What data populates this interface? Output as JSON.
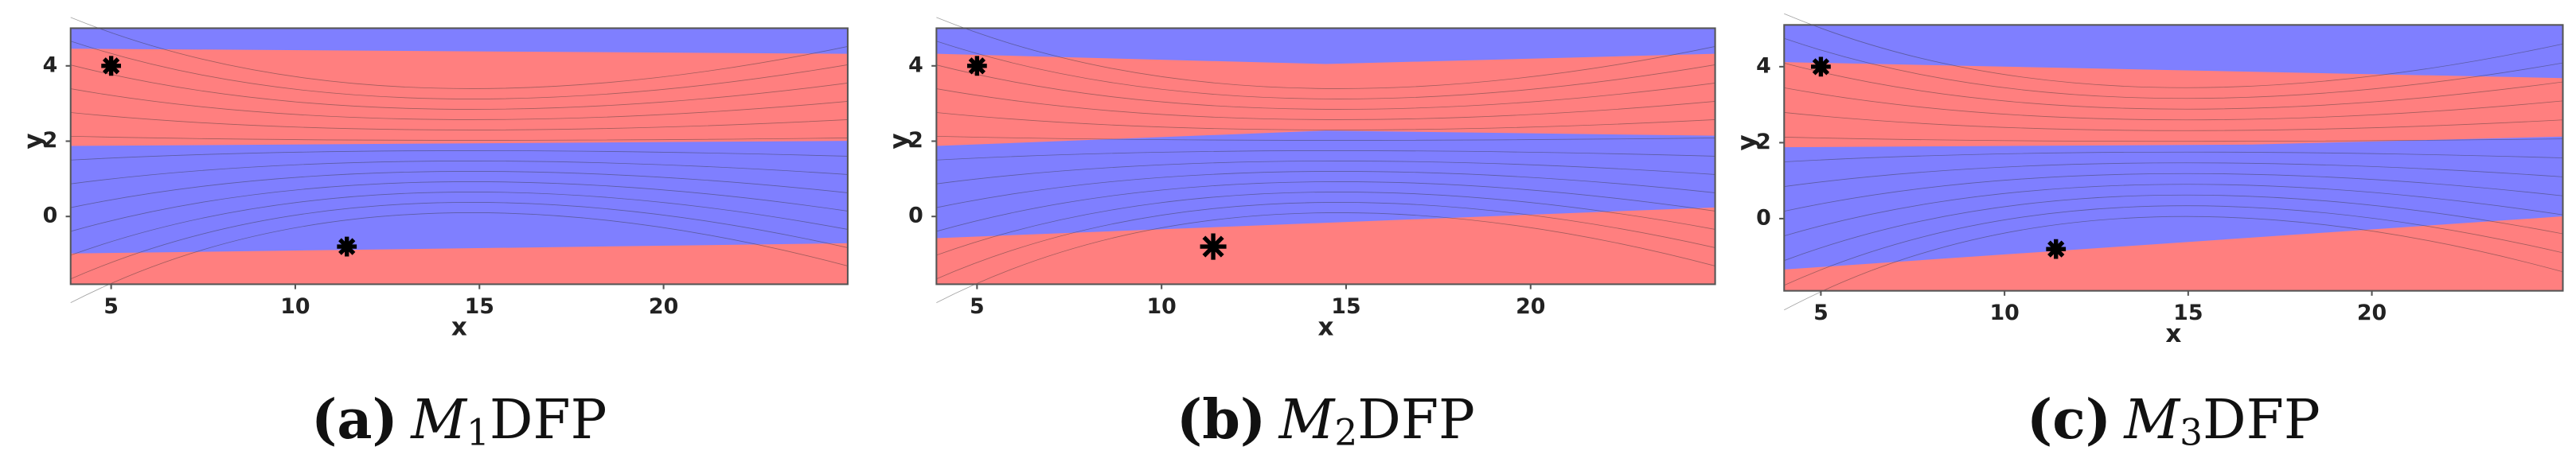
{
  "chart_data": [
    {
      "type": "basin",
      "caption_label": "(a)",
      "caption_symbol": "M",
      "caption_subscript": "1",
      "caption_suffix": "DFP",
      "xlabel": "x",
      "ylabel": "y",
      "xlim": [
        3.9,
        25
      ],
      "ylim": [
        -1.8,
        5
      ],
      "xticks": [
        5,
        10,
        15,
        20
      ],
      "yticks": [
        0,
        2,
        4
      ],
      "colors": [
        "#ff7f7f",
        "#7f7fff"
      ],
      "points": {
        "x": [
          5,
          11.4
        ],
        "y": [
          4,
          -0.8
        ]
      }
    },
    {
      "type": "basin",
      "caption_label": "(b)",
      "caption_symbol": "M",
      "caption_subscript": "2",
      "caption_suffix": "DFP",
      "xlabel": "x",
      "ylabel": "y",
      "xlim": [
        3.9,
        25
      ],
      "ylim": [
        -1.8,
        5
      ],
      "xticks": [
        5,
        10,
        15,
        20
      ],
      "yticks": [
        0,
        2,
        4
      ],
      "colors": [
        "#ff7f7f",
        "#7f7fff"
      ],
      "points": {
        "x": [
          5,
          11.4
        ],
        "y": [
          4,
          -0.8
        ]
      }
    },
    {
      "type": "basin",
      "caption_label": "(c)",
      "caption_symbol": "M",
      "caption_subscript": "3",
      "caption_suffix": "DFP",
      "xlabel": "x",
      "ylabel": "y",
      "xlim": [
        4,
        25.2
      ],
      "ylim": [
        -1.9,
        5.1
      ],
      "xticks": [
        5,
        10,
        15,
        20
      ],
      "yticks": [
        0,
        2,
        4
      ],
      "colors": [
        "#ff7f7f",
        "#7f7fff"
      ],
      "points": {
        "x": [
          5,
          11.4
        ],
        "y": [
          4,
          -0.8
        ]
      }
    }
  ]
}
